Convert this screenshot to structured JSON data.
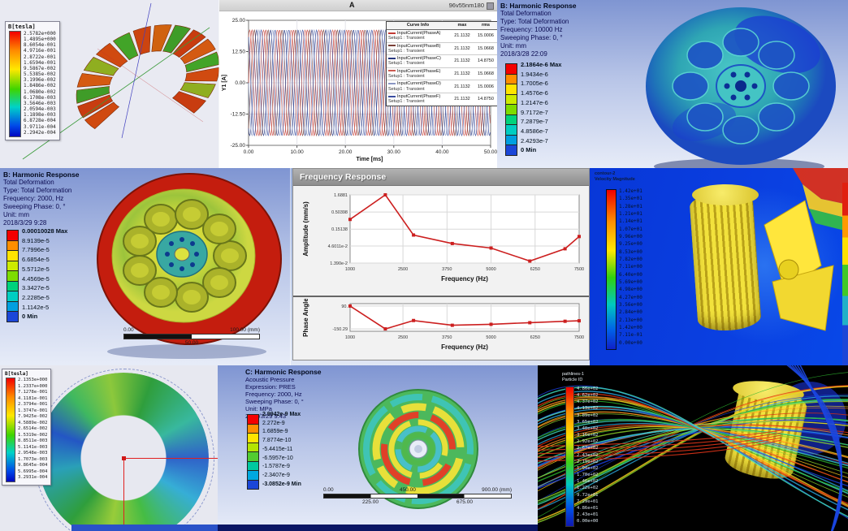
{
  "panels": {
    "maxwell_top": {
      "legend_title": "B[tesla]",
      "legend_values": [
        "2.5782e+000",
        "1.4895e+000",
        "8.6054e-001",
        "4.9716e-001",
        "2.8722e-001",
        "1.6594e-001",
        "9.5867e-002",
        "5.5385e-002",
        "3.1996e-002",
        "1.8486e-002",
        "1.0680e-002",
        "6.1708e-003",
        "3.5646e-003",
        "2.0594e-003",
        "1.1898e-003",
        "6.8728e-004",
        "3.9711e-004",
        "2.2942e-004"
      ]
    },
    "current_plot": {
      "header_title": "A",
      "window_label": "96v55nm180",
      "table": {
        "headers": [
          "Curve Info",
          "max",
          "rms"
        ],
        "setup_label": "Setup1 : Transient",
        "rows": [
          {
            "name": "InputCurrent(PhaseA)",
            "max": "21.1132",
            "rms": "15.0006",
            "color": "#c23a34"
          },
          {
            "name": "InputCurrent(PhaseB)",
            "max": "21.1132",
            "rms": "15.0668",
            "color": "#7a4038"
          },
          {
            "name": "InputCurrent(PhaseC)",
            "max": "21.1132",
            "rms": "14.8750",
            "color": "#27367e"
          },
          {
            "name": "InputCurrent(PhaseE)",
            "max": "21.1132",
            "rms": "15.0668",
            "color": "#cc5a50"
          },
          {
            "name": "InputCurrent(PhaseD)",
            "max": "21.1132",
            "rms": "15.0006",
            "color": "#8b97c4"
          },
          {
            "name": "InputCurrent(PhaseF)",
            "max": "21.1132",
            "rms": "14.8750",
            "color": "#3a4da0"
          }
        ]
      }
    },
    "harmonic_10000": {
      "info_lines": [
        "B: Harmonic Response",
        "Total Deformation",
        "Type: Total Deformation",
        "Frequency: 10000 Hz",
        "Sweeping Phase: 0, °",
        "Unit: mm",
        "2018/3/28 22:09"
      ],
      "legend_labels": [
        "2.1864e-6 Max",
        "1.9434e-6",
        "1.7005e-6",
        "1.4576e-6",
        "1.2147e-6",
        "9.7172e-7",
        "7.2879e-7",
        "4.8586e-7",
        "2.4293e-7",
        "0 Min"
      ]
    },
    "harmonic_2000": {
      "info_lines": [
        "B: Harmonic Response",
        "Total Deformation",
        "Type: Total Deformation",
        "Frequency: 2000, Hz",
        "Sweeping Phase: 0, °",
        "Unit: mm",
        "2018/3/29 9:28"
      ],
      "legend_labels": [
        "0.00010028 Max",
        "8.9139e-5",
        "7.7996e-5",
        "6.6854e-5",
        "5.5712e-5",
        "4.4569e-5",
        "3.3427e-5",
        "2.2285e-5",
        "1.1142e-5",
        "0 Min"
      ],
      "scale": {
        "left": "0.00",
        "right": "100.00 (mm)",
        "mid": "50.00"
      }
    },
    "freq_response": {
      "window_title": "Frequency Response"
    },
    "cfd": {
      "header_lines": [
        "contour-2",
        "Velocity Magnitude"
      ],
      "legend_values": [
        "1.42e+01",
        "1.35e+01",
        "1.28e+01",
        "1.21e+01",
        "1.14e+01",
        "1.07e+01",
        "9.96e+00",
        "9.25e+00",
        "8.53e+00",
        "7.82e+00",
        "7.11e+00",
        "6.40e+00",
        "5.69e+00",
        "4.98e+00",
        "4.27e+00",
        "3.56e+00",
        "2.84e+00",
        "2.13e+00",
        "1.42e+00",
        "7.11e-01",
        "0.00e+00"
      ]
    },
    "maxwell_bottom": {
      "legend_title": "B[tesla]",
      "legend_values": [
        "2.1353e+000",
        "1.2337e+000",
        "7.1278e-001",
        "4.1181e-001",
        "2.3794e-001",
        "1.3747e-001",
        "7.9425e-002",
        "4.5889e-002",
        "2.6514e-002",
        "1.5319e-002",
        "8.8511e-003",
        "5.1141e-003",
        "2.9548e-003",
        "1.7073e-003",
        "9.8645e-004",
        "5.6995e-004",
        "3.2931e-004"
      ]
    },
    "acoustic": {
      "info_lines": [
        "C: Harmonic Response",
        "Acoustic Pressure",
        "Expression: PRES",
        "Frequency: 2000, Hz",
        "Sweeping Phase: 0, °",
        "Unit: MPa",
        "2018/3/29 9:43"
      ],
      "legend_labels": [
        "2.9942e-9 Max",
        "2.272e-9",
        "1.6859e-9",
        "7.8774e-10",
        "-5.4415e-11",
        "-6.5957e-10",
        "-1.5787e-9",
        "-2.3407e-9",
        "-3.0852e-9 Min"
      ],
      "scale": {
        "left": "0.00",
        "mid": "450.00",
        "right": "900.00 (mm)",
        "q1": "225.00",
        "q3": "675.00"
      }
    },
    "pathlines": {
      "header_lines": [
        "pathlines-1",
        "Particle ID"
      ],
      "legend_values": [
        "4.86e+02",
        "4.62e+02",
        "4.37e+02",
        "4.13e+02",
        "3.89e+02",
        "3.65e+02",
        "3.40e+02",
        "3.16e+02",
        "2.92e+02",
        "2.67e+02",
        "2.43e+02",
        "2.19e+02",
        "1.94e+02",
        "1.70e+02",
        "1.46e+02",
        "1.22e+02",
        "9.72e+01",
        "7.29e+01",
        "4.86e+01",
        "2.43e+01",
        "0.00e+00"
      ]
    }
  },
  "colors": {
    "ansys_bands": [
      "#f40000",
      "#ff8e00",
      "#ffe400",
      "#cdeb00",
      "#7ddc00",
      "#00d27c",
      "#00cdc2",
      "#009fe0",
      "#1b46d8"
    ],
    "acoustic_bands": [
      "#f40000",
      "#ff9000",
      "#ffe400",
      "#b4e400",
      "#52cc30",
      "#00c8a0",
      "#00a8e0",
      "#1b46d8"
    ],
    "torus_palette": [
      "#d04a10",
      "#c83c10",
      "#3f9c28",
      "#d45a12",
      "#8fae20",
      "#d04a10",
      "#42a428",
      "#cc4410",
      "#d0620f",
      "#3f9c28",
      "#c83c10",
      "#d45a12",
      "#42a428",
      "#d04a10",
      "#8fae20",
      "#c83c10"
    ],
    "streamline_palette": [
      "#2db52d",
      "#8fd42a",
      "#ffd21e",
      "#ff8c1e",
      "#e03010",
      "#2aa8e0",
      "#1a40e0",
      "#40e0c0"
    ]
  },
  "chart_data": [
    {
      "type": "line",
      "title": "A",
      "xlabel": "Time [ms]",
      "ylabel": "Y1 [A]",
      "xlim": [
        0,
        50
      ],
      "ylim": [
        -25,
        25
      ],
      "x_tick_labels": [
        "0.00",
        "10.00",
        "20.00",
        "30.00",
        "40.00",
        "50.00"
      ],
      "y_tick_labels": [
        "25.00",
        "12.50",
        "0.00",
        "-12.50",
        "-25.00"
      ],
      "series": [
        {
          "name": "InputCurrent(PhaseA)",
          "amplitude": 21.1132,
          "cycles_in_window": 17.5,
          "phase_deg": 0,
          "color": "#c23a34"
        },
        {
          "name": "InputCurrent(PhaseB)",
          "amplitude": 21.1132,
          "cycles_in_window": 17.5,
          "phase_deg": -60,
          "color": "#7a4038"
        },
        {
          "name": "InputCurrent(PhaseC)",
          "amplitude": 21.1132,
          "cycles_in_window": 17.5,
          "phase_deg": -120,
          "color": "#27367e"
        },
        {
          "name": "InputCurrent(PhaseD)",
          "amplitude": 21.1132,
          "cycles_in_window": 17.5,
          "phase_deg": 180,
          "color": "#8b97c4"
        },
        {
          "name": "InputCurrent(PhaseE)",
          "amplitude": 21.1132,
          "cycles_in_window": 17.5,
          "phase_deg": 60,
          "color": "#cc5a50"
        },
        {
          "name": "InputCurrent(PhaseF)",
          "amplitude": 21.1132,
          "cycles_in_window": 17.5,
          "phase_deg": 120,
          "color": "#3a4da0"
        }
      ]
    },
    {
      "type": "line",
      "name": "Amplitude response",
      "xlabel": "Frequency (Hz)",
      "ylabel": "Amplitude (mm/s)",
      "ylog": true,
      "x_ticks": [
        1000,
        2500,
        3750,
        5000,
        6250,
        7500
      ],
      "x_tick_labels": [
        "1000",
        "2500",
        "3750",
        "5000",
        "6250",
        "7500"
      ],
      "y_ticks": [
        1.6881,
        0.50398,
        0.15138,
        0.046011,
        0.0139
      ],
      "y_tick_labels": [
        "1.6881",
        "0.50398",
        "0.15138",
        "4.6011e-2",
        "1.390e-2"
      ],
      "x": [
        1000,
        2000,
        2800,
        3900,
        5000,
        6100,
        7100,
        7500
      ],
      "y": [
        0.3,
        1.69,
        0.1,
        0.055,
        0.04,
        0.016,
        0.038,
        0.09
      ],
      "color": "#cc1f1f"
    },
    {
      "type": "line",
      "name": "Phase response",
      "xlabel": "Frequency (Hz)",
      "ylabel": "Phase Angle",
      "ylim": [
        -175,
        115
      ],
      "x_ticks": [
        1000,
        2500,
        3750,
        5000,
        6250,
        7500
      ],
      "x_tick_labels": [
        "1000",
        "2500",
        "3750",
        "5000",
        "6250",
        "7500"
      ],
      "y_ticks": [
        90,
        -150.29
      ],
      "y_tick_labels": [
        "90.",
        "-150.29"
      ],
      "x": [
        1000,
        2000,
        2800,
        3900,
        5000,
        6100,
        7100,
        7500
      ],
      "y": [
        90,
        -150,
        -62,
        -112,
        -102,
        -85,
        -70,
        -65
      ],
      "color": "#cc1f1f"
    }
  ]
}
